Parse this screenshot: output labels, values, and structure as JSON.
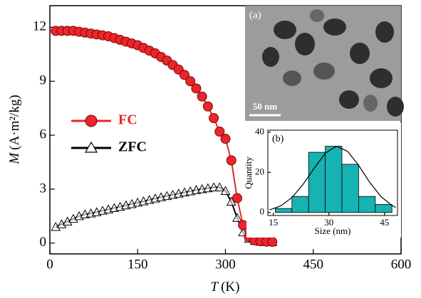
{
  "chart_data": [
    {
      "type": "line",
      "xlabel": {
        "symbol": "T",
        "unit": "(K)"
      },
      "ylabel": {
        "symbol": "M",
        "unit": "(A·m²/kg)"
      },
      "xlim": [
        0,
        600
      ],
      "xticks": [
        0,
        150,
        300,
        450,
        600
      ],
      "ylim": [
        -0.6,
        13.2
      ],
      "yticks": [
        0,
        3,
        6,
        9,
        12
      ],
      "x": [
        10,
        20,
        30,
        40,
        50,
        60,
        70,
        80,
        90,
        100,
        110,
        120,
        130,
        140,
        150,
        160,
        170,
        180,
        190,
        200,
        210,
        220,
        230,
        240,
        250,
        260,
        270,
        280,
        290,
        300,
        310,
        320,
        330,
        340,
        350,
        360,
        370,
        380
      ],
      "series": [
        {
          "name": "FC",
          "color": "#e8262b",
          "marker": "circle",
          "values": [
            11.8,
            11.8,
            11.8,
            11.8,
            11.75,
            11.7,
            11.65,
            11.6,
            11.55,
            11.5,
            11.4,
            11.3,
            11.2,
            11.1,
            11.0,
            10.85,
            10.7,
            10.55,
            10.35,
            10.15,
            9.9,
            9.65,
            9.35,
            9.0,
            8.6,
            8.15,
            7.6,
            6.95,
            6.2,
            5.8,
            4.6,
            2.5,
            1.0,
            0.35,
            0.15,
            0.1,
            0.08,
            0.07
          ]
        },
        {
          "name": "ZFC",
          "color": "#000000",
          "marker": "triangle",
          "values": [
            0.9,
            1.05,
            1.2,
            1.35,
            1.5,
            1.6,
            1.65,
            1.72,
            1.8,
            1.87,
            1.95,
            2.02,
            2.1,
            2.17,
            2.25,
            2.32,
            2.4,
            2.48,
            2.55,
            2.62,
            2.68,
            2.75,
            2.82,
            2.88,
            2.95,
            3.0,
            3.05,
            3.1,
            3.1,
            2.9,
            2.3,
            1.4,
            0.6,
            0.25,
            0.12,
            0.08,
            0.06,
            0.05
          ]
        }
      ]
    },
    {
      "type": "histogram",
      "label": "(b)",
      "xlabel": "Size (nm)",
      "ylabel": "Quantity",
      "xlim": [
        13.5,
        48.5
      ],
      "xticks": [
        15,
        30,
        45
      ],
      "ylim": [
        -1.5,
        41
      ],
      "yticks": [
        0,
        20,
        40
      ],
      "bins": [
        15.5,
        20,
        24.5,
        29,
        33.5,
        38,
        42.5,
        47
      ],
      "values": [
        2,
        8,
        30,
        33,
        24,
        8,
        4
      ],
      "color": "#17b2b2",
      "fit": {
        "x": [
          14,
          17,
          20,
          23,
          26,
          29,
          32,
          35,
          38,
          41,
          44,
          47,
          48
        ],
        "values": [
          1.3,
          3.3,
          7.4,
          14,
          22,
          29.5,
          33,
          30.5,
          23.5,
          15,
          8,
          3.5,
          2.5
        ],
        "color": "#000000"
      }
    }
  ],
  "inset_image": {
    "label": "(a)",
    "scale_bar": "50 nm"
  }
}
